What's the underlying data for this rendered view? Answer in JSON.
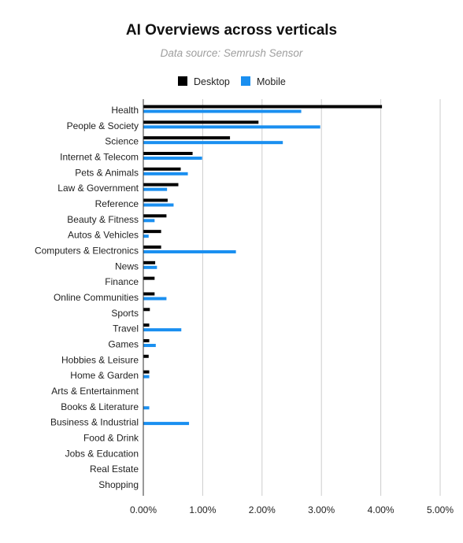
{
  "chart_data": {
    "type": "bar",
    "orientation": "horizontal",
    "title": "AI Overviews across verticals",
    "subtitle": "Data source: Semrush Sensor",
    "legend_position": "top",
    "grid": true,
    "xlim": [
      0,
      5
    ],
    "x_ticks": [
      0,
      1,
      2,
      3,
      4,
      5
    ],
    "x_tick_labels": [
      "0.00%",
      "1.00%",
      "2.00%",
      "3.00%",
      "4.00%",
      "5.00%"
    ],
    "categories": [
      "Health",
      "People & Society",
      "Science",
      "Internet & Telecom",
      "Pets & Animals",
      "Law & Government",
      "Reference",
      "Beauty & Fitness",
      "Autos & Vehicles",
      "Computers & Electronics",
      "News",
      "Finance",
      "Online Communities",
      "Sports",
      "Travel",
      "Games",
      "Hobbies & Leisure",
      "Home & Garden",
      "Arts & Entertainment",
      "Books & Literature",
      "Business & Industrial",
      "Food & Drink",
      "Jobs & Education",
      "Real Estate",
      "Shopping"
    ],
    "series": [
      {
        "name": "Desktop",
        "color": "#000000",
        "values": [
          4.02,
          1.94,
          1.46,
          0.83,
          0.63,
          0.59,
          0.41,
          0.39,
          0.3,
          0.3,
          0.2,
          0.19,
          0.19,
          0.11,
          0.1,
          0.1,
          0.09,
          0.1,
          0,
          0,
          0,
          0,
          0,
          0,
          0
        ]
      },
      {
        "name": "Mobile",
        "color": "#1a8ff0",
        "values": [
          2.66,
          2.98,
          2.35,
          0.99,
          0.75,
          0.4,
          0.51,
          0.19,
          0.09,
          1.56,
          0.23,
          0,
          0.39,
          0,
          0.64,
          0.21,
          0,
          0.1,
          0,
          0.1,
          0.77,
          0,
          0,
          0,
          0
        ]
      }
    ]
  }
}
